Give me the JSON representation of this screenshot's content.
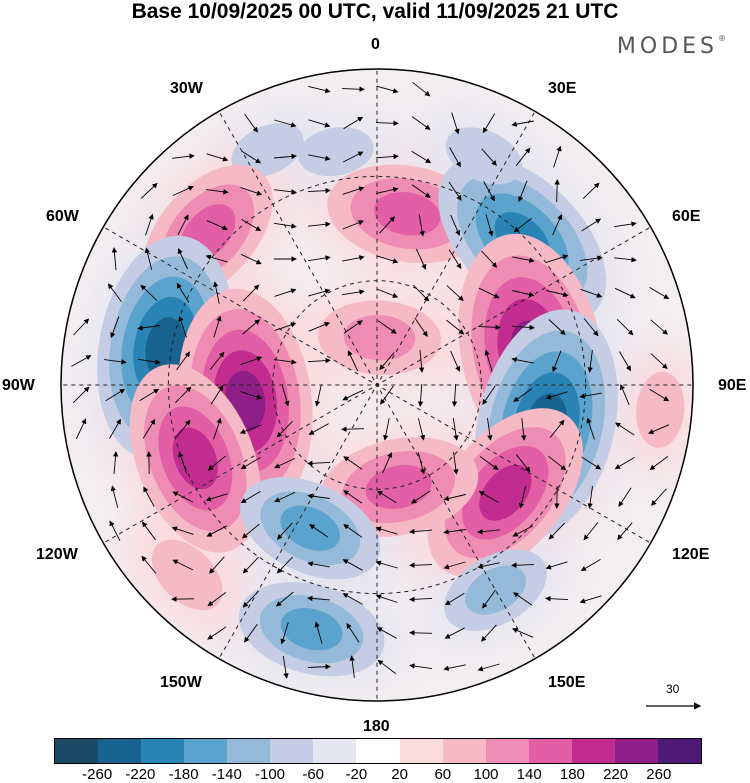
{
  "title": "Base 10/09/2025 00 UTC, valid 11/09/2025 21 UTC",
  "brand": "MODES",
  "brand_mark": "®",
  "longitude_labels": {
    "top": "0",
    "bottom": "180",
    "left": "90W",
    "right": "90E",
    "upper_left": "30W",
    "upper_right": "30E",
    "mid_left_top": "60W",
    "mid_right_top": "60E",
    "mid_left_bottom": "120W",
    "mid_right_bottom": "120E",
    "lower_left": "150W",
    "lower_right": "150E"
  },
  "vector_scale": {
    "label": "30",
    "icon": "arrow-right-icon"
  },
  "colorbar": {
    "colors": [
      "#1c4a66",
      "#17628f",
      "#2a83b5",
      "#5aa3cc",
      "#95bad9",
      "#c4cde4",
      "#e6e6f0",
      "#ffffff",
      "#fadce0",
      "#f6b9c6",
      "#ef8cb4",
      "#e25fa6",
      "#c22c8e",
      "#8f1f87",
      "#4f1977"
    ],
    "ticks": [
      "-260",
      "-220",
      "-180",
      "-140",
      "-100",
      "-60",
      "-20",
      "20",
      "60",
      "100",
      "140",
      "180",
      "220",
      "260"
    ]
  },
  "field_cells": [
    {
      "lon": 10,
      "r": 0.55,
      "value": 160
    },
    {
      "lon": 3,
      "r": 0.15,
      "value": 120
    },
    {
      "lon": -25,
      "r": 0.82,
      "value": -70
    },
    {
      "lon": -10,
      "r": 0.75,
      "value": -70
    },
    {
      "lon": 45,
      "r": 0.65,
      "value": -210
    },
    {
      "lon": 25,
      "r": 0.8,
      "value": -80
    },
    {
      "lon": -48,
      "r": 0.72,
      "value": 160
    },
    {
      "lon": -80,
      "r": 0.68,
      "value": -230
    },
    {
      "lon": -97,
      "r": 0.42,
      "value": 230
    },
    {
      "lon": -112,
      "r": 0.62,
      "value": 200
    },
    {
      "lon": 78,
      "r": 0.5,
      "value": 250
    },
    {
      "lon": 103,
      "r": 0.55,
      "value": -240
    },
    {
      "lon": 130,
      "r": 0.53,
      "value": 200
    },
    {
      "lon": 168,
      "r": 0.33,
      "value": 160
    },
    {
      "lon": -155,
      "r": 0.5,
      "value": -140
    },
    {
      "lon": -165,
      "r": 0.8,
      "value": -140
    },
    {
      "lon": 150,
      "r": 0.75,
      "value": -100
    },
    {
      "lon": -135,
      "r": 0.85,
      "value": 90
    },
    {
      "lon": 95,
      "r": 0.9,
      "value": 70
    }
  ]
}
